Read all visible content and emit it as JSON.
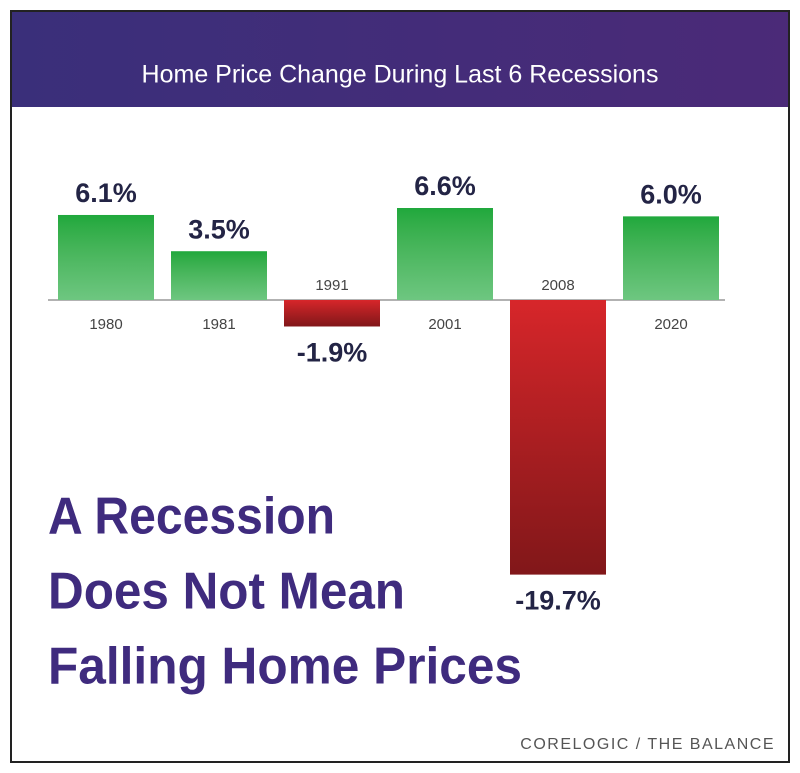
{
  "chart_data": {
    "type": "bar",
    "title": "Home Price Change During Last 6 Recessions",
    "categories": [
      "1980",
      "1981",
      "1991",
      "2001",
      "2008",
      "2020"
    ],
    "values": [
      6.1,
      3.5,
      -1.9,
      6.6,
      -19.7,
      6.0
    ],
    "value_labels": [
      "6.1%",
      "3.5%",
      "-1.9%",
      "6.6%",
      "-19.7%",
      "6.0%"
    ],
    "colors": {
      "positive": "#1fa83c",
      "negative": "#d7262a"
    },
    "annotation": [
      "A Recession",
      "Does Not Mean",
      "Falling Home Prices"
    ],
    "source": "CORELOGIC / THE BALANCE"
  }
}
